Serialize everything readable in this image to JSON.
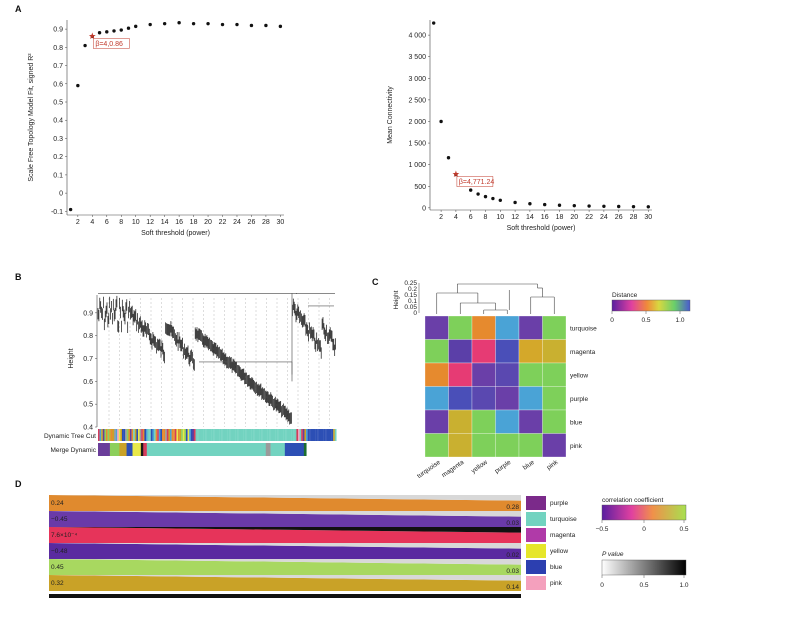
{
  "panels": {
    "A": "A",
    "B": "B",
    "C": "C",
    "D": "D"
  },
  "chart_data": [
    {
      "panel": "A",
      "type": "scatter",
      "xlabel": "Soft threshold (power)",
      "ylabel": "Scale Free Topology Model Fit, signed R²",
      "x_ticks": [
        "2",
        "4",
        "6",
        "8",
        "10",
        "12",
        "14",
        "16",
        "18",
        "20",
        "22",
        "24",
        "26",
        "28",
        "30"
      ],
      "y_ticks": [
        "-0.1",
        "0",
        "0.1",
        "0.2",
        "0.3",
        "0.4",
        "0.5",
        "0.6",
        "0.7",
        "0.8",
        "0.9"
      ],
      "xlim": [
        0.5,
        30.5
      ],
      "ylim": [
        -0.12,
        0.95
      ],
      "points": [
        {
          "x": 1,
          "y": -0.09
        },
        {
          "x": 2,
          "y": 0.59
        },
        {
          "x": 3,
          "y": 0.81
        },
        {
          "x": 4,
          "y": 0.86
        },
        {
          "x": 5,
          "y": 0.88
        },
        {
          "x": 6,
          "y": 0.885
        },
        {
          "x": 7,
          "y": 0.89
        },
        {
          "x": 8,
          "y": 0.895
        },
        {
          "x": 9,
          "y": 0.905
        },
        {
          "x": 10,
          "y": 0.915
        },
        {
          "x": 12,
          "y": 0.925
        },
        {
          "x": 14,
          "y": 0.93
        },
        {
          "x": 16,
          "y": 0.935
        },
        {
          "x": 18,
          "y": 0.93
        },
        {
          "x": 20,
          "y": 0.93
        },
        {
          "x": 22,
          "y": 0.925
        },
        {
          "x": 24,
          "y": 0.925
        },
        {
          "x": 26,
          "y": 0.92
        },
        {
          "x": 28,
          "y": 0.92
        },
        {
          "x": 30,
          "y": 0.915
        }
      ],
      "highlight": {
        "x": 4,
        "y": 0.86,
        "label": "β=4,0.86"
      }
    },
    {
      "panel": "A-right",
      "type": "scatter",
      "xlabel": "Soft threshold (power)",
      "ylabel": "Mean Connectivity",
      "x_ticks": [
        "2",
        "4",
        "6",
        "8",
        "10",
        "12",
        "14",
        "16",
        "18",
        "20",
        "22",
        "24",
        "26",
        "28",
        "30"
      ],
      "y_ticks": [
        "0",
        "500",
        "1 000",
        "1 500",
        "2 000",
        "2 500",
        "3 000",
        "3 500",
        "4 000"
      ],
      "xlim": [
        0.5,
        30.5
      ],
      "ylim": [
        -50,
        4350
      ],
      "points": [
        {
          "x": 1,
          "y": 4280
        },
        {
          "x": 2,
          "y": 2000
        },
        {
          "x": 3,
          "y": 1160
        },
        {
          "x": 4,
          "y": 771
        },
        {
          "x": 5,
          "y": 560
        },
        {
          "x": 6,
          "y": 410
        },
        {
          "x": 7,
          "y": 320
        },
        {
          "x": 8,
          "y": 260
        },
        {
          "x": 9,
          "y": 215
        },
        {
          "x": 10,
          "y": 175
        },
        {
          "x": 12,
          "y": 125
        },
        {
          "x": 14,
          "y": 95
        },
        {
          "x": 16,
          "y": 75
        },
        {
          "x": 18,
          "y": 60
        },
        {
          "x": 20,
          "y": 50
        },
        {
          "x": 22,
          "y": 42
        },
        {
          "x": 24,
          "y": 36
        },
        {
          "x": 26,
          "y": 31
        },
        {
          "x": 28,
          "y": 27
        },
        {
          "x": 30,
          "y": 24
        }
      ],
      "highlight": {
        "x": 4,
        "y": 771.24,
        "label": "β=4,771.24"
      }
    },
    {
      "panel": "B",
      "type": "dendrogram",
      "ylabel": "Height",
      "y_ticks": [
        "0.4",
        "0.5",
        "0.6",
        "0.7",
        "0.8",
        "0.9"
      ],
      "ylim": [
        0.4,
        1.0
      ],
      "track_labels": [
        "Dynamic Tree Cut",
        "Merge Dynamic"
      ],
      "merged_segments": [
        {
          "color": "#6a3d9a",
          "w": 0.05
        },
        {
          "color": "#8ccf5a",
          "w": 0.04
        },
        {
          "color": "#c9a227",
          "w": 0.03
        },
        {
          "color": "#2c4fb5",
          "w": 0.025
        },
        {
          "color": "#e8e84a",
          "w": 0.035
        },
        {
          "color": "#1a1a1a",
          "w": 0.01
        },
        {
          "color": "#d63b5a",
          "w": 0.015
        },
        {
          "color": "#72d3c0",
          "w": 0.5
        },
        {
          "color": "#9a9a9a",
          "w": 0.02
        },
        {
          "color": "#72d3c0",
          "w": 0.06
        },
        {
          "color": "#2c4fb5",
          "w": 0.08
        },
        {
          "color": "#1b6e30",
          "w": 0.01
        }
      ]
    },
    {
      "panel": "C",
      "type": "heatmap",
      "ylabel": "Height",
      "dendro_ticks": [
        "0",
        "0.05",
        "0.1",
        "0.15",
        "0.2",
        "0.25"
      ],
      "modules": [
        "turquoise",
        "magenta",
        "yellow",
        "purple",
        "blue",
        "pink"
      ],
      "legend": {
        "title": "Distance",
        "ticks": [
          "0",
          "0.5",
          "1.0"
        ]
      },
      "colors": [
        [
          "#6a3fa8",
          "#7ed05a",
          "#e68a2e",
          "#4aa3d6",
          "#6a3fa8",
          "#7ed05a"
        ],
        [
          "#7ed05a",
          "#5b3fa8",
          "#e63b74",
          "#4a4fb8",
          "#d4a82a",
          "#c9b030"
        ],
        [
          "#e68a2e",
          "#e63b74",
          "#6a3fa8",
          "#5a48b0",
          "#7ed05a",
          "#7ed05a"
        ],
        [
          "#4aa3d6",
          "#4a4fb8",
          "#5a48b0",
          "#6a3fa8",
          "#4aa3d6",
          "#7ed05a"
        ],
        [
          "#6a3fa8",
          "#c9b030",
          "#7ed05a",
          "#4aa3d6",
          "#6a3fa8",
          "#7ed05a"
        ],
        [
          "#7ed05a",
          "#c9b030",
          "#7ed05a",
          "#7ed05a",
          "#7ed05a",
          "#6a3fa8"
        ]
      ]
    },
    {
      "panel": "D",
      "type": "table",
      "rows": [
        {
          "module": "purple",
          "color": "#7b2a8a",
          "left_color": "#e08a2e",
          "corr": "0.24",
          "pval": "0.28"
        },
        {
          "module": "turquoise",
          "color": "#72d3c0",
          "left_color": "#6a3aa8",
          "corr": "−0.45",
          "pval": "0.03"
        },
        {
          "module": "magenta",
          "color": "#b03aa8",
          "left_color": "#e6345a",
          "corr": "7.6×10⁻⁴",
          "pval": ""
        },
        {
          "module": "yellow",
          "color": "#e6e62a",
          "left_color": "#5a2aa0",
          "corr": "−0.48",
          "pval": "0.02"
        },
        {
          "module": "blue",
          "color": "#2c3fb0",
          "left_color": "#a8d860",
          "corr": "0.45",
          "pval": "0.03"
        },
        {
          "module": "pink",
          "color": "#f4a0bd",
          "left_color": "#c9a227",
          "corr": "0.32",
          "pval": "0.14"
        }
      ],
      "legend_corr": {
        "title": "correlation coefficient",
        "ticks": [
          "−0.5",
          "0",
          "0.5"
        ]
      },
      "legend_p": {
        "title": "P value",
        "ticks": [
          "0",
          "0.5",
          "1.0"
        ]
      }
    }
  ]
}
